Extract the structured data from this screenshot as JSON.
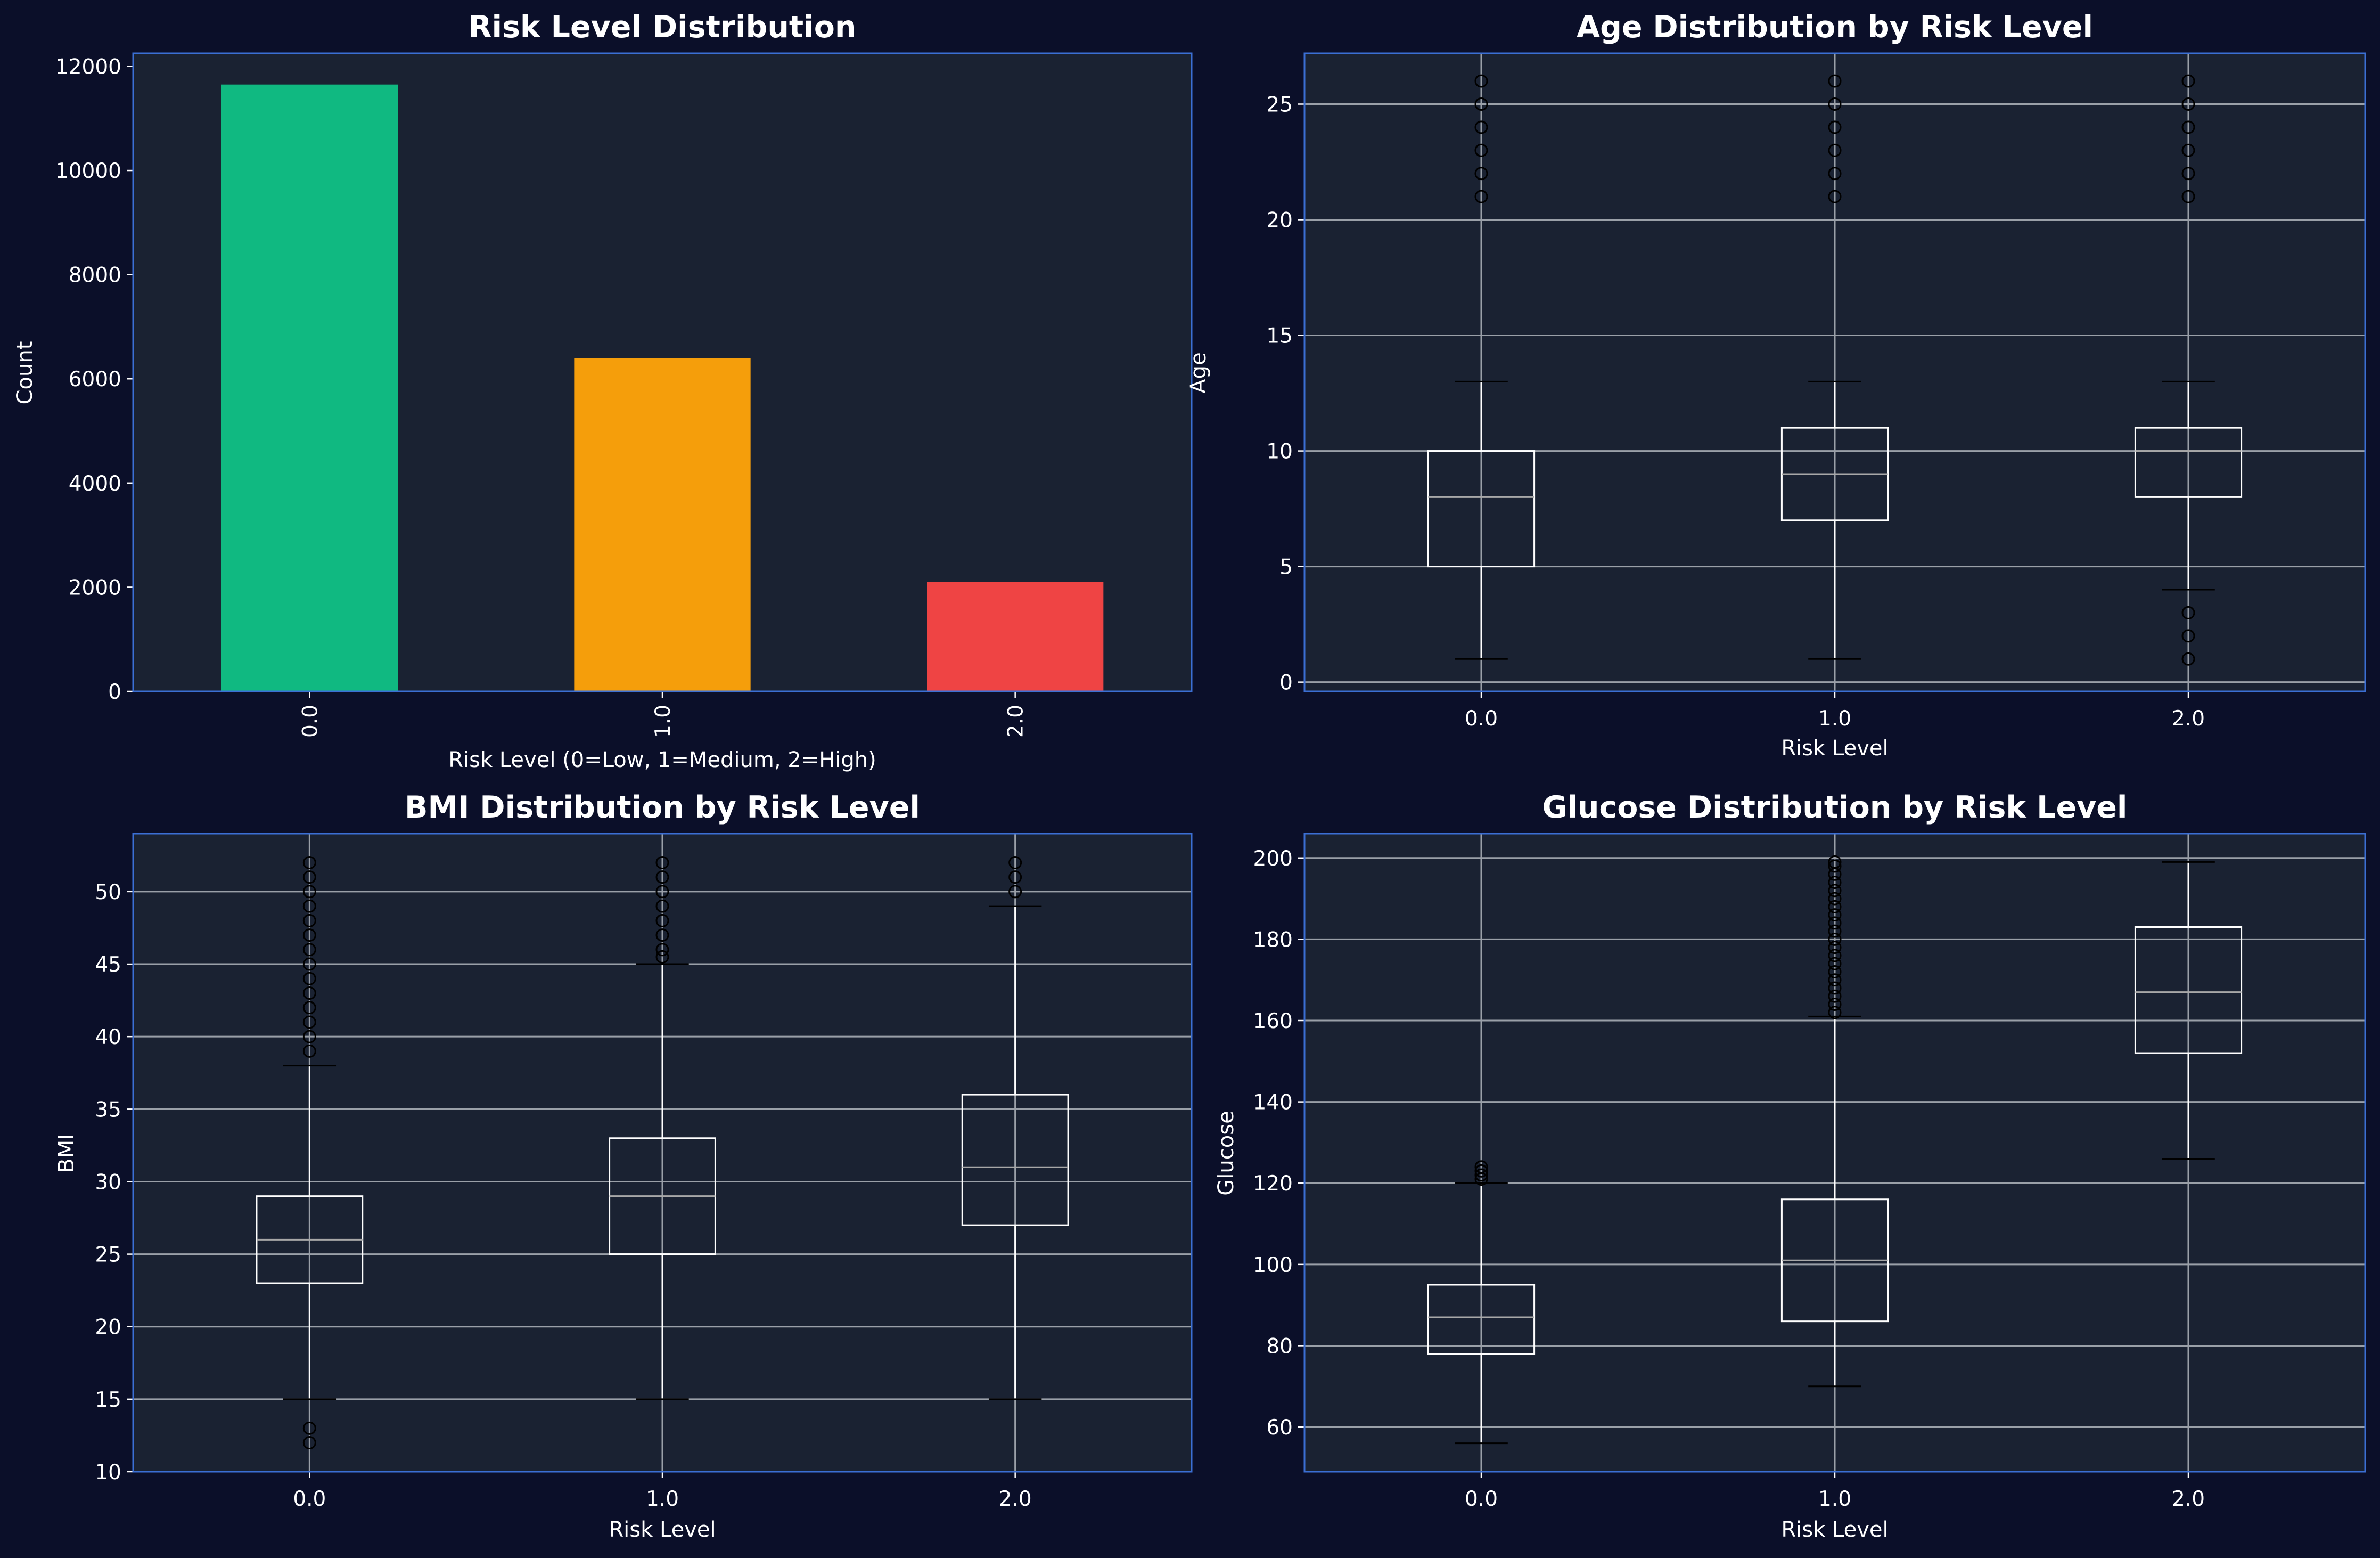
{
  "colors": {
    "figure_bg": "#0b0f29",
    "axes_bg": "#1a2232",
    "axes_border": "#3b6fd4",
    "grid": "#9aa0a8",
    "text": "#ffffff",
    "box": "#ffffff",
    "median": "#a8a8a8",
    "flier": "#000000"
  },
  "chart_data": [
    {
      "type": "bar",
      "title": "Risk Level Distribution",
      "xlabel": "Risk Level (0=Low, 1=Medium, 2=High)",
      "ylabel": "Count",
      "categories": [
        "0.0",
        "1.0",
        "2.0"
      ],
      "values": [
        11650,
        6400,
        2100
      ],
      "colors": [
        "#10b981",
        "#f59e0b",
        "#ef4444"
      ],
      "ylim": [
        0,
        12250
      ],
      "yticks": [
        0,
        2000,
        4000,
        6000,
        8000,
        10000,
        12000
      ],
      "grid": false,
      "xtick_rotation": "vertical"
    },
    {
      "type": "boxplot",
      "title": "Age Distribution by Risk Level",
      "xlabel": "Risk Level",
      "ylabel": "Age",
      "categories": [
        "0.0",
        "1.0",
        "2.0"
      ],
      "ylim": [
        -0.4,
        27.2
      ],
      "yticks": [
        0,
        5,
        10,
        15,
        20,
        25
      ],
      "grid": true,
      "boxes": [
        {
          "whisker_low": 1,
          "q1": 5,
          "median": 8,
          "q3": 10,
          "whisker_high": 13,
          "fliers": [
            21,
            22,
            23,
            24,
            25,
            26
          ]
        },
        {
          "whisker_low": 1,
          "q1": 7,
          "median": 9,
          "q3": 11,
          "whisker_high": 13,
          "fliers": [
            21,
            22,
            23,
            24,
            25,
            26
          ]
        },
        {
          "whisker_low": 4,
          "q1": 8,
          "median": 10,
          "q3": 11,
          "whisker_high": 13,
          "fliers": [
            1,
            2,
            3,
            21,
            22,
            23,
            24,
            25,
            26
          ]
        }
      ]
    },
    {
      "type": "boxplot",
      "title": "BMI Distribution by Risk Level",
      "xlabel": "Risk Level",
      "ylabel": "BMI",
      "categories": [
        "0.0",
        "1.0",
        "2.0"
      ],
      "ylim": [
        10,
        54
      ],
      "yticks": [
        10,
        15,
        20,
        25,
        30,
        35,
        40,
        45,
        50
      ],
      "grid": true,
      "boxes": [
        {
          "whisker_low": 15,
          "q1": 23,
          "median": 26,
          "q3": 29,
          "whisker_high": 38,
          "fliers": [
            12,
            13,
            39,
            40,
            41,
            42,
            43,
            44,
            45,
            46,
            47,
            48,
            49,
            50,
            51,
            52
          ]
        },
        {
          "whisker_low": 15,
          "q1": 25,
          "median": 29,
          "q3": 33,
          "whisker_high": 45,
          "fliers": [
            45.5,
            46,
            47,
            48,
            49,
            50,
            51,
            52
          ]
        },
        {
          "whisker_low": 15,
          "q1": 27,
          "median": 31,
          "q3": 36,
          "whisker_high": 49,
          "fliers": [
            50,
            51,
            52
          ]
        }
      ]
    },
    {
      "type": "boxplot",
      "title": "Glucose Distribution by Risk Level",
      "xlabel": "Risk Level",
      "ylabel": "Glucose",
      "categories": [
        "0.0",
        "1.0",
        "2.0"
      ],
      "ylim": [
        49,
        206
      ],
      "yticks": [
        60,
        80,
        100,
        120,
        140,
        160,
        180,
        200
      ],
      "grid": true,
      "boxes": [
        {
          "whisker_low": 56,
          "q1": 78,
          "median": 87,
          "q3": 95,
          "whisker_high": 120,
          "fliers": [
            121,
            122,
            123,
            124
          ]
        },
        {
          "whisker_low": 70,
          "q1": 86,
          "median": 101,
          "q3": 116,
          "whisker_high": 161,
          "fliers": [
            162,
            164,
            166,
            168,
            170,
            172,
            174,
            176,
            178,
            180,
            182,
            184,
            186,
            188,
            190,
            192,
            194,
            196,
            198,
            199
          ]
        },
        {
          "whisker_low": 126,
          "q1": 152,
          "median": 167,
          "q3": 183,
          "whisker_high": 199,
          "fliers": []
        }
      ]
    }
  ]
}
